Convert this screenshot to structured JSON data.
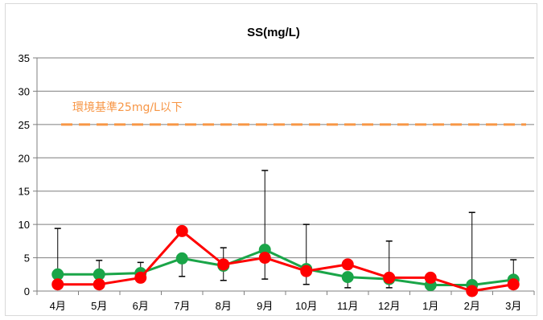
{
  "chart_data": {
    "type": "line",
    "title": "SS(mg/L)",
    "categories": [
      "4月",
      "5月",
      "6月",
      "7月",
      "8月",
      "9月",
      "10月",
      "11月",
      "12月",
      "1月",
      "2月",
      "3月"
    ],
    "ylim": [
      0,
      35
    ],
    "yticks": [
      0,
      5,
      10,
      15,
      20,
      25,
      30,
      35
    ],
    "grid": true,
    "legend": "none",
    "series": [
      {
        "color": "#1aa548",
        "values": [
          2.5,
          2.5,
          2.7,
          4.9,
          3.8,
          6.2,
          3.3,
          2.1,
          1.8,
          0.9,
          0.9,
          1.7
        ],
        "error_high": [
          9.4,
          4.6,
          4.3,
          null,
          6.5,
          18.1,
          10.0,
          null,
          7.5,
          null,
          11.8,
          4.7
        ],
        "error_low": [
          null,
          null,
          1.4,
          2.2,
          1.6,
          1.8,
          1.0,
          0.5,
          0.5,
          0.2,
          0.3,
          null
        ]
      },
      {
        "color": "#ff0000",
        "values": [
          1.0,
          1.0,
          2.0,
          9.0,
          4.0,
          5.0,
          3.0,
          4.0,
          2.0,
          2.0,
          0.0,
          1.0
        ]
      }
    ],
    "reference_line": {
      "value": 25,
      "label": "環境基準25mg/L以下",
      "color": "#f79646"
    }
  }
}
